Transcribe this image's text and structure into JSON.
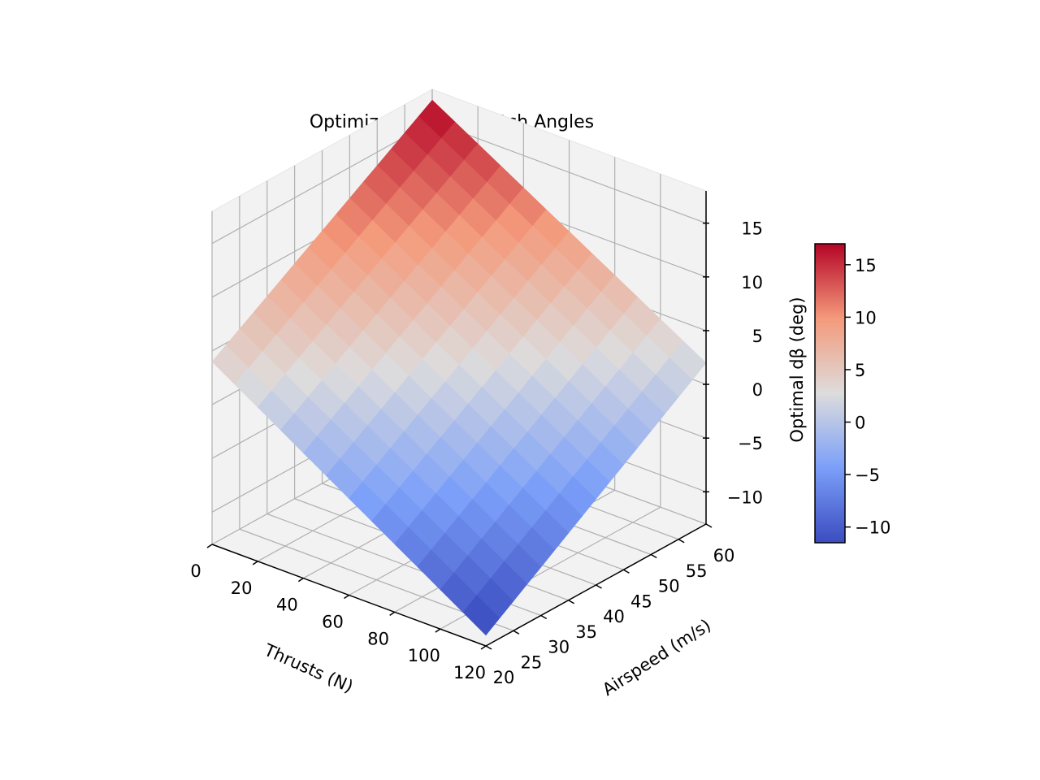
{
  "chart_data": {
    "type": "surface",
    "title": "Optimized Variable Pitch Angles",
    "xlabel": "Thrusts (N)",
    "ylabel": "Airspeed (m/s)",
    "zlabel": "Optimal dβ (deg)",
    "xlim": [
      0,
      120
    ],
    "ylim": [
      20,
      60
    ],
    "zlim": [
      -13,
      18
    ],
    "xticks": [
      0,
      20,
      40,
      60,
      80,
      100,
      120
    ],
    "yticks": [
      20,
      25,
      30,
      35,
      40,
      45,
      50,
      55,
      60
    ],
    "zticks": [
      -10,
      -5,
      0,
      5,
      10,
      15
    ],
    "zticklabels": [
      "−10",
      "−5",
      "0",
      "5",
      "10",
      "15"
    ],
    "colorbar": {
      "label": "Optimal dβ (deg)",
      "range": [
        -11.5,
        17
      ],
      "ticks": [
        -10,
        -5,
        0,
        5,
        10,
        15
      ],
      "ticklabels": [
        "−10",
        "−5",
        "0",
        "5",
        "10",
        "15"
      ],
      "colormap": "coolwarm"
    },
    "grid": true,
    "surface_grid": {
      "x_start": 0,
      "x_step": 10,
      "x_count": 13,
      "y_start": 20,
      "y_step": 2.5,
      "y_count": 17,
      "z_corner_values": {
        "x0_y20": 4,
        "x120_y20": -12,
        "x0_y60": 17,
        "x120_y60": 2
      }
    }
  }
}
